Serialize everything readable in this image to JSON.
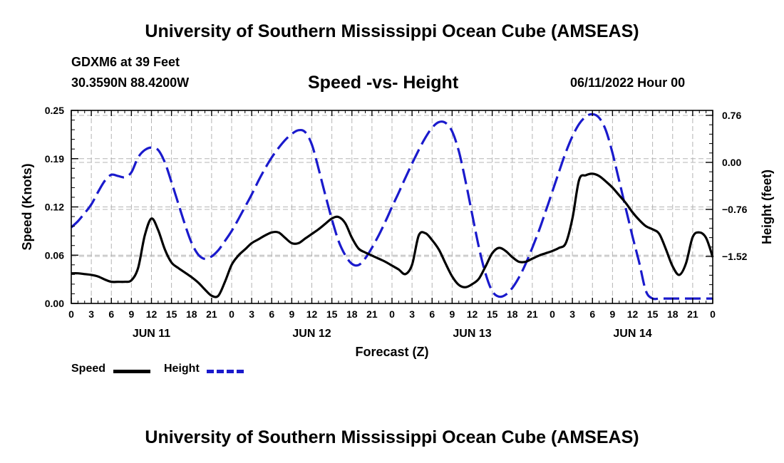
{
  "header": {
    "title": "University of Southern Mississippi Ocean Cube (AMSEAS)",
    "station": "GDXM6 at 39 Feet",
    "coords": "30.3590N  88.4200W",
    "subtitle": "Speed -vs- Height",
    "datetime": "06/11/2022 Hour 00"
  },
  "footer": {
    "title": "University of Southern Mississippi Ocean Cube (AMSEAS)"
  },
  "legend": {
    "speed_label": "Speed",
    "height_label": "Height"
  },
  "colors": {
    "speed": "#000000",
    "height": "#1a1acc",
    "grid": "#b4b4b4"
  },
  "chart_data": {
    "type": "line",
    "xlabel": "Forecast (Z)",
    "ylabel": "Speed (Knots)",
    "y2label": "Height (feet)",
    "xlim": [
      0,
      96
    ],
    "ylim": [
      0,
      0.25
    ],
    "y2lim": [
      -2.28,
      0.84
    ],
    "x_tick_step_hours": 3,
    "x_tick_labels": [
      "0",
      "3",
      "6",
      "9",
      "12",
      "15",
      "18",
      "21",
      "0",
      "3",
      "6",
      "9",
      "12",
      "15",
      "18",
      "21",
      "0",
      "3",
      "6",
      "9",
      "12",
      "15",
      "18",
      "21",
      "0",
      "3",
      "6",
      "9",
      "12",
      "15",
      "18",
      "21",
      "0"
    ],
    "day_labels": [
      {
        "label": "JUN 11",
        "hour": 12
      },
      {
        "label": "JUN 12",
        "hour": 36
      },
      {
        "label": "JUN 13",
        "hour": 60
      },
      {
        "label": "JUN 14",
        "hour": 84
      }
    ],
    "y_ticks": [
      {
        "value": 0.0,
        "label": "0.00"
      },
      {
        "value": 0.0625,
        "label": "0.06"
      },
      {
        "value": 0.125,
        "label": "0.12"
      },
      {
        "value": 0.1875,
        "label": "0.19"
      },
      {
        "value": 0.25,
        "label": "0.25"
      }
    ],
    "y2_ticks": [
      {
        "value": 0.76,
        "label": "0.76"
      },
      {
        "value": 0.0,
        "label": "0.00"
      },
      {
        "value": -0.76,
        "label": "−0.76"
      },
      {
        "value": -1.52,
        "label": "−1.52"
      }
    ],
    "series": [
      {
        "name": "Speed",
        "axis": "left",
        "x": [
          0,
          1,
          2,
          3,
          4,
          5,
          6,
          7,
          8,
          9,
          10,
          11,
          12,
          13,
          14,
          15,
          16,
          17,
          18,
          19,
          20,
          21,
          22,
          23,
          24,
          25,
          26,
          27,
          28,
          29,
          30,
          31,
          32,
          33,
          34,
          35,
          36,
          37,
          38,
          39,
          40,
          41,
          42,
          43,
          44,
          45,
          46,
          47,
          48,
          49,
          50,
          51,
          52,
          53,
          54,
          55,
          56,
          57,
          58,
          59,
          60,
          61,
          62,
          63,
          64,
          65,
          66,
          67,
          68,
          69,
          70,
          71,
          72,
          73,
          74,
          75,
          76,
          77,
          78,
          79,
          80,
          81,
          82,
          83,
          84,
          85,
          86,
          87,
          88,
          89,
          90,
          91,
          92,
          93,
          94,
          95,
          96
        ],
        "values": [
          0.039,
          0.039,
          0.038,
          0.037,
          0.035,
          0.031,
          0.028,
          0.028,
          0.028,
          0.03,
          0.046,
          0.088,
          0.11,
          0.095,
          0.07,
          0.053,
          0.046,
          0.04,
          0.034,
          0.027,
          0.018,
          0.01,
          0.01,
          0.028,
          0.05,
          0.062,
          0.07,
          0.078,
          0.083,
          0.088,
          0.092,
          0.092,
          0.085,
          0.078,
          0.078,
          0.084,
          0.09,
          0.096,
          0.103,
          0.11,
          0.112,
          0.104,
          0.085,
          0.071,
          0.066,
          0.062,
          0.058,
          0.054,
          0.049,
          0.044,
          0.038,
          0.05,
          0.088,
          0.091,
          0.082,
          0.07,
          0.052,
          0.035,
          0.024,
          0.021,
          0.025,
          0.032,
          0.048,
          0.065,
          0.072,
          0.068,
          0.06,
          0.054,
          0.054,
          0.058,
          0.062,
          0.065,
          0.068,
          0.072,
          0.078,
          0.11,
          0.16,
          0.166,
          0.168,
          0.165,
          0.158,
          0.15,
          0.14,
          0.13,
          0.118,
          0.108,
          0.1,
          0.096,
          0.09,
          0.07,
          0.048,
          0.037,
          0.052,
          0.086,
          0.092,
          0.085,
          0.06
        ]
      },
      {
        "name": "Height",
        "axis": "right",
        "x": [
          0,
          1,
          2,
          3,
          4,
          5,
          6,
          7,
          8,
          9,
          10,
          11,
          12,
          13,
          14,
          15,
          16,
          17,
          18,
          19,
          20,
          21,
          22,
          23,
          24,
          25,
          26,
          27,
          28,
          29,
          30,
          31,
          32,
          33,
          34,
          35,
          36,
          37,
          38,
          39,
          40,
          41,
          42,
          43,
          44,
          45,
          46,
          47,
          48,
          49,
          50,
          51,
          52,
          53,
          54,
          55,
          56,
          57,
          58,
          59,
          60,
          61,
          62,
          63,
          64,
          65,
          66,
          67,
          68,
          69,
          70,
          71,
          72,
          73,
          74,
          75,
          76,
          77,
          78,
          79,
          80,
          81,
          82,
          83,
          84,
          85,
          86,
          87,
          88,
          89,
          90,
          91,
          92,
          93,
          94,
          95,
          96
        ],
        "values": [
          -1.05,
          -0.95,
          -0.82,
          -0.68,
          -0.48,
          -0.3,
          -0.2,
          -0.22,
          -0.24,
          -0.16,
          0.08,
          0.2,
          0.24,
          0.2,
          0.0,
          -0.32,
          -0.66,
          -1.0,
          -1.3,
          -1.49,
          -1.56,
          -1.52,
          -1.42,
          -1.27,
          -1.11,
          -0.92,
          -0.72,
          -0.52,
          -0.3,
          -0.1,
          0.08,
          0.23,
          0.36,
          0.46,
          0.52,
          0.49,
          0.29,
          -0.1,
          -0.52,
          -0.92,
          -1.27,
          -1.5,
          -1.64,
          -1.66,
          -1.55,
          -1.38,
          -1.18,
          -0.96,
          -0.72,
          -0.49,
          -0.25,
          -0.02,
          0.2,
          0.4,
          0.56,
          0.65,
          0.64,
          0.5,
          0.18,
          -0.3,
          -0.84,
          -1.37,
          -1.8,
          -2.08,
          -2.17,
          -2.14,
          -2.03,
          -1.86,
          -1.64,
          -1.38,
          -1.1,
          -0.79,
          -0.47,
          -0.15,
          0.16,
          0.42,
          0.62,
          0.74,
          0.78,
          0.72,
          0.52,
          0.15,
          -0.3,
          -0.75,
          -1.2,
          -1.62,
          -2.08,
          -2.2,
          -2.2,
          -2.2,
          -2.2,
          -2.2,
          -2.2,
          -2.2,
          -2.2,
          -2.2,
          -2.2
        ]
      }
    ]
  }
}
